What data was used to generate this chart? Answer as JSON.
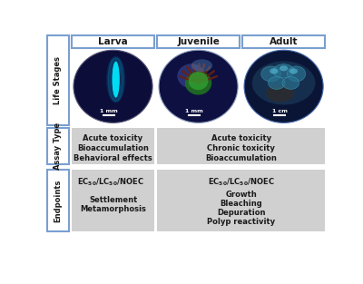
{
  "title_larva": "Larva",
  "title_juvenile": "Juvenile",
  "title_adult": "Adult",
  "row_label_1": "Life Stages",
  "row_label_2": "Assay Type",
  "row_label_3": "Endpoints",
  "assay_larva": [
    "Acute toxicity",
    "Bioaccumulation",
    "Behavioral effects"
  ],
  "assay_juv_adult": [
    "Acute toxicity",
    "Chronic toxicity",
    "Bioaccumulation"
  ],
  "endpoints_larva_line1": "EC",
  "endpoints_larva_sub1": "50",
  "endpoints_larva_line2": "LC",
  "endpoints_larva_sub2": "50",
  "endpoints_larva_extra": [
    "Settlement",
    "Metamorphosis"
  ],
  "endpoints_juv_adult_extra": [
    "Growth",
    "Bleaching",
    "Depuration",
    "Polyp reactivity"
  ],
  "scale_larva": "1 mm",
  "scale_juvenile": "1 mm",
  "scale_adult": "1 cm",
  "bg_color": "#ffffff",
  "box_bg": "#d0d0d0",
  "header_border": "#7a9fd0",
  "side_label_border": "#7a9fd0",
  "text_color": "#1a1a1a",
  "gap_color": "#ffffff"
}
